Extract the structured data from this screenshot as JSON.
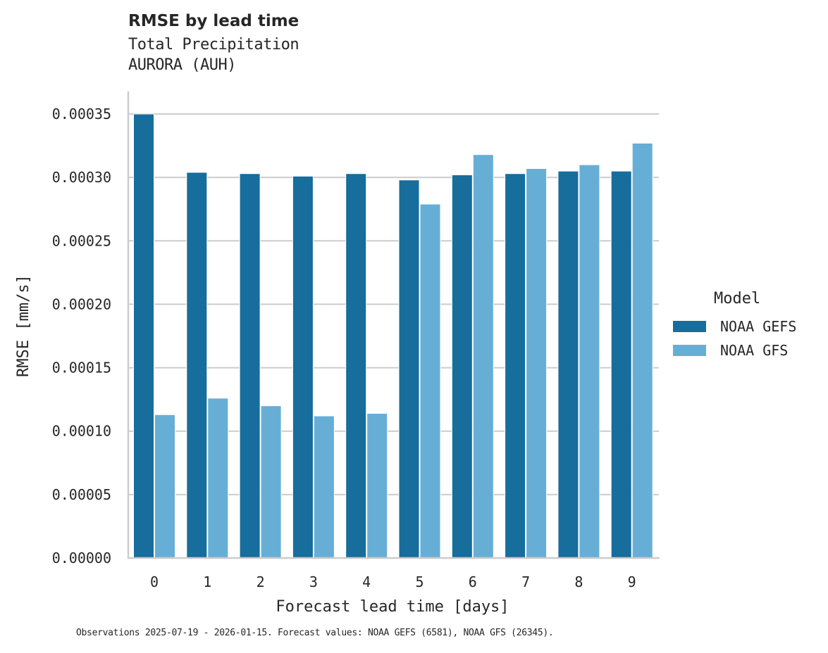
{
  "header": {
    "title": "RMSE by lead time",
    "subtitle_line1": "Total Precipitation",
    "subtitle_line2": "AURORA (AUH)"
  },
  "axes": {
    "ylabel": "RMSE [mm/s]",
    "xlabel": "Forecast lead time [days]",
    "yticks": [
      "0.00000",
      "0.00005",
      "0.00010",
      "0.00015",
      "0.00020",
      "0.00025",
      "0.00030",
      "0.00035"
    ],
    "xticks": [
      "0",
      "1",
      "2",
      "3",
      "4",
      "5",
      "6",
      "7",
      "8",
      "9"
    ]
  },
  "legend": {
    "title": "Model",
    "items": [
      {
        "label": "NOAA GEFS",
        "color": "#176d9c"
      },
      {
        "label": "NOAA GFS",
        "color": "#67aed6"
      }
    ]
  },
  "footnote": "Observations 2025-07-19 - 2026-01-15. Forecast values: NOAA GEFS (6581), NOAA GFS (26345).",
  "chart_data": {
    "type": "bar",
    "title": "RMSE by lead time",
    "subtitle": "Total Precipitation / AURORA (AUH)",
    "xlabel": "Forecast lead time [days]",
    "ylabel": "RMSE [mm/s]",
    "categories": [
      0,
      1,
      2,
      3,
      4,
      5,
      6,
      7,
      8,
      9
    ],
    "series": [
      {
        "name": "NOAA GEFS",
        "color": "#176d9c",
        "values": [
          0.00035,
          0.000304,
          0.000303,
          0.000301,
          0.000303,
          0.000298,
          0.000302,
          0.000303,
          0.000305,
          0.000305
        ]
      },
      {
        "name": "NOAA GFS",
        "color": "#67aed6",
        "values": [
          0.000113,
          0.000126,
          0.00012,
          0.000112,
          0.000114,
          0.000279,
          0.000318,
          0.000307,
          0.00031,
          0.000327
        ]
      }
    ],
    "ylim": [
      0,
      0.00037
    ],
    "yticks": [
      0,
      5e-05,
      0.0001,
      0.00015,
      0.0002,
      0.00025,
      0.0003,
      0.00035
    ],
    "grid": "horizontal",
    "legend_position": "right",
    "legend_title": "Model"
  }
}
